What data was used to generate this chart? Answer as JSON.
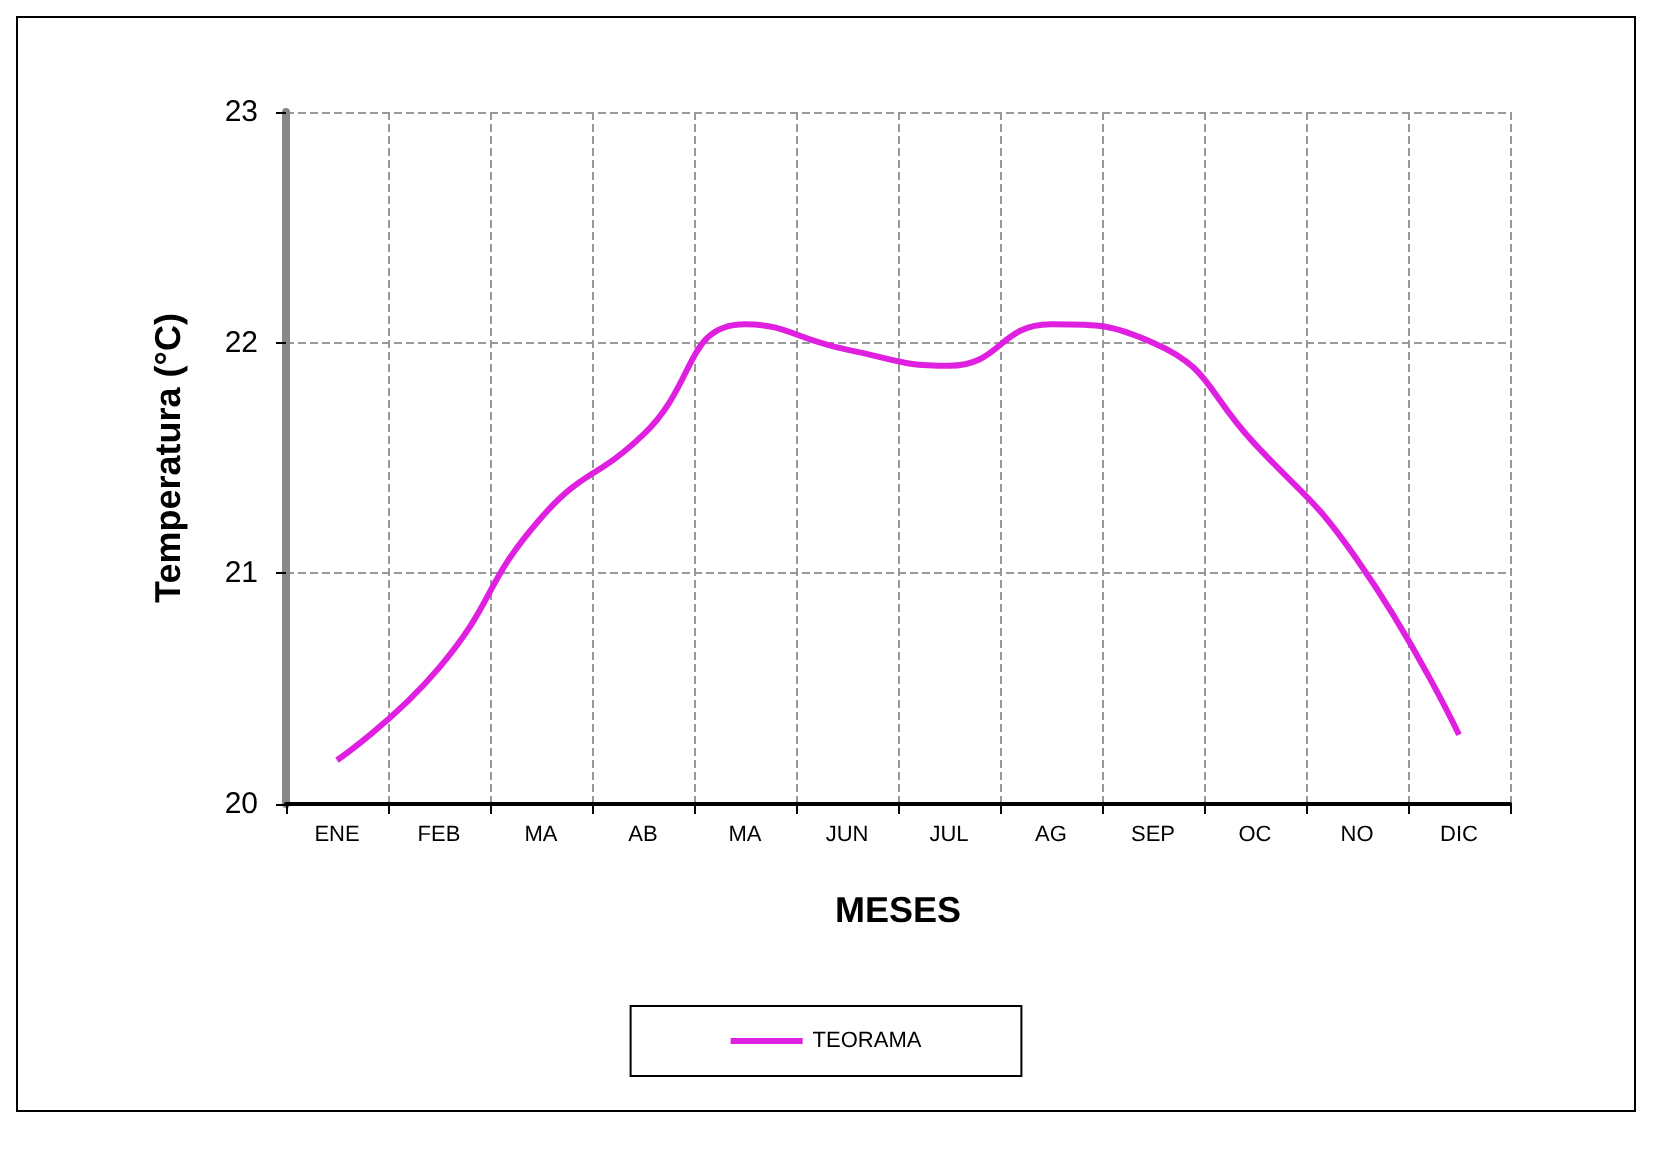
{
  "chart_data": {
    "type": "line",
    "xlabel": "MESES",
    "ylabel": "Temperatura (°C)",
    "categories": [
      "ENE",
      "FEB",
      "MA",
      "AB",
      "MA",
      "JUN",
      "JUL",
      "AG",
      "SEP",
      "OC",
      "NO",
      "DIC"
    ],
    "series": [
      {
        "name": "TEORAMA",
        "color": "#e020e0",
        "values": [
          20.19,
          20.59,
          21.24,
          21.6,
          22.08,
          21.97,
          21.9,
          22.08,
          22.0,
          21.56,
          21.06,
          20.3
        ]
      }
    ],
    "ylim": [
      20,
      23
    ],
    "yticks": [
      20,
      21,
      22,
      23
    ],
    "grid": true,
    "legend": "bottom",
    "marker": "none",
    "line_style": "solid"
  }
}
